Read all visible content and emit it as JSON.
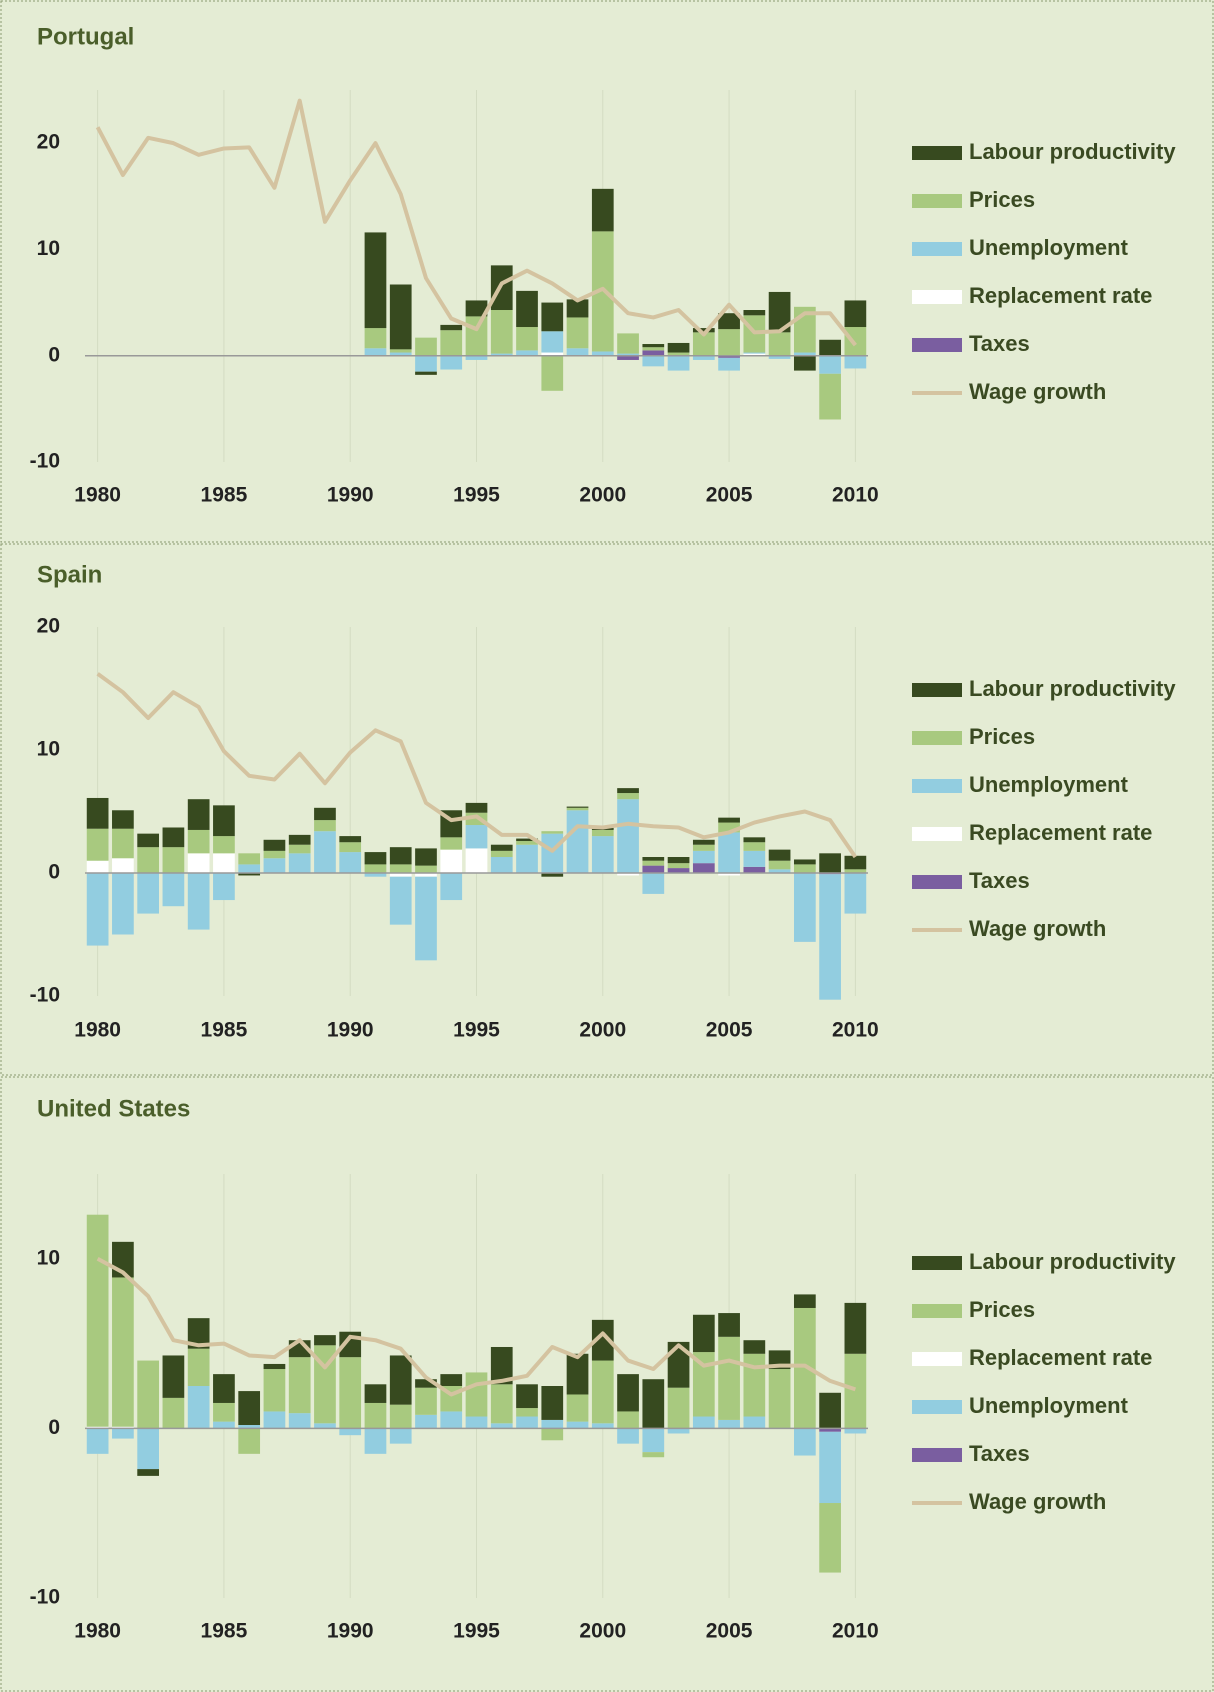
{
  "chart_data": [
    {
      "type": "bar",
      "stacked": true,
      "title": "Portugal",
      "x": [
        1980,
        1981,
        1982,
        1983,
        1984,
        1985,
        1986,
        1987,
        1988,
        1989,
        1990,
        1991,
        1992,
        1993,
        1994,
        1995,
        1996,
        1997,
        1998,
        1999,
        2000,
        2001,
        2002,
        2003,
        2004,
        2005,
        2006,
        2007,
        2008,
        2009,
        2010
      ],
      "xlim": [
        1979.5,
        2010.5
      ],
      "xticks": [
        1980,
        1985,
        1990,
        1995,
        2000,
        2005,
        2010
      ],
      "ylim": [
        -10,
        25
      ],
      "yticks": [
        -10,
        0,
        10,
        20
      ],
      "grid": "x",
      "series": [
        {
          "name": "Labour productivity",
          "color": "#374a1f",
          "values": [
            null,
            null,
            null,
            null,
            null,
            null,
            null,
            null,
            null,
            null,
            null,
            9,
            6.1,
            -0.3,
            0.5,
            1.5,
            4.2,
            3.4,
            2.7,
            1.7,
            4,
            0,
            0.3,
            0.9,
            0.4,
            1.5,
            0.5,
            3.8,
            -1.4,
            1.5,
            2.5
          ]
        },
        {
          "name": "Prices",
          "color": "#a8c97f",
          "values": [
            null,
            null,
            null,
            null,
            null,
            null,
            null,
            null,
            null,
            null,
            null,
            1.9,
            0.3,
            1.7,
            2.4,
            3.7,
            4.1,
            2.2,
            -3.3,
            2.9,
            11.3,
            1.9,
            0.3,
            0.3,
            2.2,
            2.5,
            3.5,
            2.2,
            4.3,
            -4.3,
            2.7
          ]
        },
        {
          "name": "Unemployment",
          "color": "#92cde0",
          "values": [
            null,
            null,
            null,
            null,
            null,
            null,
            null,
            null,
            null,
            null,
            null,
            0.7,
            0.3,
            -1.5,
            -1.3,
            -0.4,
            0.2,
            0.5,
            2,
            0.7,
            0.4,
            0.2,
            -1,
            -1.4,
            -0.4,
            -1.2,
            0.1,
            -0.3,
            0.3,
            -1.7,
            -1.2
          ]
        },
        {
          "name": "Replacement rate",
          "color": "#ffffff",
          "values": [
            null,
            null,
            null,
            null,
            null,
            null,
            null,
            null,
            null,
            null,
            null,
            0,
            0,
            0,
            0,
            0,
            0,
            0,
            0.3,
            0,
            0,
            0,
            0,
            0,
            0,
            0,
            0.2,
            0,
            0,
            0,
            0
          ]
        },
        {
          "name": "Taxes",
          "color": "#7a5ea0",
          "values": [
            null,
            null,
            null,
            null,
            null,
            null,
            null,
            null,
            null,
            null,
            null,
            0,
            0,
            0,
            0,
            0,
            0,
            0,
            0,
            0,
            0,
            -0.4,
            0.5,
            0,
            0,
            -0.2,
            0,
            0,
            0,
            0,
            0
          ]
        },
        {
          "name": "Wage growth",
          "color": "#d4c3a0",
          "type": "line",
          "values": [
            21.5,
            17,
            20.5,
            20,
            18.9,
            19.5,
            19.6,
            15.8,
            24,
            12.6,
            16.5,
            20,
            15.2,
            7.3,
            3.5,
            2.5,
            6.8,
            8,
            6.8,
            5.2,
            6.3,
            4,
            3.6,
            4.3,
            2,
            4.8,
            2.2,
            2.3,
            4,
            4,
            1
          ]
        }
      ]
    },
    {
      "type": "bar",
      "stacked": true,
      "title": "Spain",
      "x": [
        1980,
        1981,
        1982,
        1983,
        1984,
        1985,
        1986,
        1987,
        1988,
        1989,
        1990,
        1991,
        1992,
        1993,
        1994,
        1995,
        1996,
        1997,
        1998,
        1999,
        2000,
        2001,
        2002,
        2003,
        2004,
        2005,
        2006,
        2007,
        2008,
        2009,
        2010
      ],
      "xlim": [
        1979.5,
        2010.5
      ],
      "xticks": [
        1980,
        1985,
        1990,
        1995,
        2000,
        2005,
        2010
      ],
      "ylim": [
        -10,
        20
      ],
      "yticks": [
        -10,
        0,
        10,
        20
      ],
      "grid": "x",
      "series": [
        {
          "name": "Labour productivity",
          "color": "#374a1f",
          "values": [
            2.5,
            1.5,
            1.1,
            1.6,
            2.5,
            2.5,
            -0.2,
            0.9,
            0.8,
            1.0,
            0.5,
            1.0,
            1.4,
            1.4,
            2.2,
            0.8,
            0.5,
            0.2,
            -0.3,
            0.1,
            0.2,
            0.4,
            0.3,
            0.5,
            0.4,
            0.4,
            0.4,
            0.9,
            0.4,
            1.6,
            1.1
          ]
        },
        {
          "name": "Prices",
          "color": "#a8c97f",
          "values": [
            2.6,
            2.4,
            2.1,
            2.1,
            1.9,
            1.4,
            0.9,
            0.6,
            0.7,
            0.9,
            0.8,
            0.7,
            0.7,
            0.6,
            1.0,
            1.0,
            0.5,
            0.3,
            0.2,
            0.2,
            0.5,
            0.5,
            0.4,
            0.4,
            0.5,
            0.8,
            0.7,
            0.7,
            0.7,
            0,
            0.3
          ]
        },
        {
          "name": "Unemployment",
          "color": "#92cde0",
          "values": [
            -5.9,
            -5,
            -3.3,
            -2.7,
            -4.6,
            -2.2,
            0.7,
            1.2,
            1.6,
            3.4,
            1.7,
            -0.3,
            -3.9,
            -6.8,
            -2.2,
            1.9,
            1.3,
            2.3,
            3.2,
            5.1,
            3.0,
            6.0,
            -1.7,
            0,
            1.0,
            3.3,
            1.3,
            0.3,
            -5.6,
            -10.2,
            -3.3
          ]
        },
        {
          "name": "Replacement rate",
          "color": "#ffffff",
          "values": [
            1.0,
            1.2,
            0,
            0,
            1.6,
            1.6,
            0,
            0,
            0,
            0,
            0,
            0,
            -0.3,
            -0.3,
            1.9,
            2.0,
            0,
            0,
            0,
            0,
            0,
            -0.2,
            0,
            0,
            0,
            -0.2,
            0,
            0,
            0,
            0,
            0
          ]
        },
        {
          "name": "Taxes",
          "color": "#7a5ea0",
          "values": [
            0,
            0,
            0,
            0,
            0,
            0,
            0,
            0,
            0,
            0,
            0,
            0,
            0,
            0,
            0,
            0,
            0,
            0,
            0,
            0,
            0,
            0,
            0.6,
            0.4,
            0.8,
            0,
            0.5,
            0,
            0,
            -0.1,
            0
          ]
        },
        {
          "name": "Wage growth",
          "color": "#d4c3a0",
          "type": "line",
          "values": [
            16.2,
            14.7,
            12.6,
            14.7,
            13.5,
            9.9,
            7.9,
            7.6,
            9.7,
            7.3,
            9.8,
            11.6,
            10.7,
            5.7,
            4.3,
            4.6,
            3.1,
            3.1,
            1.8,
            3.8,
            3.7,
            4.0,
            3.8,
            3.7,
            2.9,
            3.3,
            4.1,
            4.6,
            5.0,
            4.3,
            1.3
          ]
        }
      ]
    },
    {
      "type": "bar",
      "stacked": true,
      "title": "United States",
      "x": [
        1980,
        1981,
        1982,
        1983,
        1984,
        1985,
        1986,
        1987,
        1988,
        1989,
        1990,
        1991,
        1992,
        1993,
        1994,
        1995,
        1996,
        1997,
        1998,
        1999,
        2000,
        2001,
        2002,
        2003,
        2004,
        2005,
        2006,
        2007,
        2008,
        2009,
        2010
      ],
      "xlim": [
        1979.5,
        2010.5
      ],
      "xticks": [
        1980,
        1985,
        1990,
        1995,
        2000,
        2005,
        2010
      ],
      "ylim": [
        -10,
        15
      ],
      "yticks": [
        -10,
        0,
        10
      ],
      "grid": "x",
      "series": [
        {
          "name": "Labour productivity",
          "color": "#374a1f",
          "values": [
            0,
            2.1,
            -0.4,
            2.5,
            1.8,
            1.7,
            2.0,
            0.3,
            1.0,
            0.6,
            1.5,
            1.1,
            2.9,
            0.5,
            0.7,
            0,
            2.2,
            1.4,
            2.0,
            2.4,
            2.4,
            2.2,
            2.9,
            2.7,
            2.2,
            1.4,
            0.8,
            1.1,
            0.8,
            2.1,
            3.0
          ]
        },
        {
          "name": "Prices",
          "color": "#a8c97f",
          "values": [
            12.5,
            8.8,
            4.0,
            1.8,
            2.2,
            1.1,
            -1.5,
            2.5,
            3.3,
            4.6,
            4.2,
            1.5,
            1.4,
            1.6,
            1.5,
            2.6,
            2.3,
            0.5,
            -0.7,
            1.6,
            3.7,
            1.0,
            -0.3,
            2.4,
            3.8,
            4.9,
            3.7,
            3.5,
            7.1,
            -4.1,
            4.4
          ]
        },
        {
          "name": "Replacement rate",
          "color": "#ffffff",
          "values": [
            0.1,
            0.1,
            0,
            0,
            0,
            0,
            0,
            0,
            0,
            0,
            0,
            0,
            0,
            0,
            0,
            0,
            0,
            0,
            0,
            0,
            0,
            0,
            0,
            0,
            0,
            0,
            0,
            0,
            0,
            0,
            0
          ]
        },
        {
          "name": "Unemployment",
          "color": "#92cde0",
          "values": [
            -1.5,
            -0.6,
            -2.4,
            0,
            2.5,
            0.4,
            0.2,
            1.0,
            0.9,
            0.3,
            -0.4,
            -1.5,
            -0.9,
            0.8,
            1.0,
            0.7,
            0.3,
            0.7,
            0.5,
            0.4,
            0.3,
            -0.9,
            -1.4,
            -0.3,
            0.7,
            0.5,
            0.7,
            0,
            -1.6,
            -4.2,
            -0.3
          ]
        },
        {
          "name": "Taxes",
          "color": "#7a5ea0",
          "values": [
            0,
            0,
            0,
            0,
            0,
            0,
            0,
            0,
            0,
            0,
            0,
            0,
            0,
            0,
            0,
            0,
            0,
            0,
            0,
            0,
            0,
            0,
            0,
            0,
            0,
            0,
            0,
            0,
            0,
            -0.2,
            0
          ]
        },
        {
          "name": "Wage growth",
          "color": "#d4c3a0",
          "type": "line",
          "values": [
            10.0,
            9.2,
            7.8,
            5.2,
            4.9,
            5.0,
            4.3,
            4.2,
            5.2,
            3.6,
            5.4,
            5.2,
            4.7,
            3.0,
            2.0,
            2.6,
            2.8,
            3.1,
            4.8,
            4.2,
            5.6,
            4.0,
            3.5,
            4.9,
            3.7,
            4.0,
            3.6,
            3.7,
            3.7,
            2.8,
            2.3
          ]
        }
      ]
    }
  ]
}
